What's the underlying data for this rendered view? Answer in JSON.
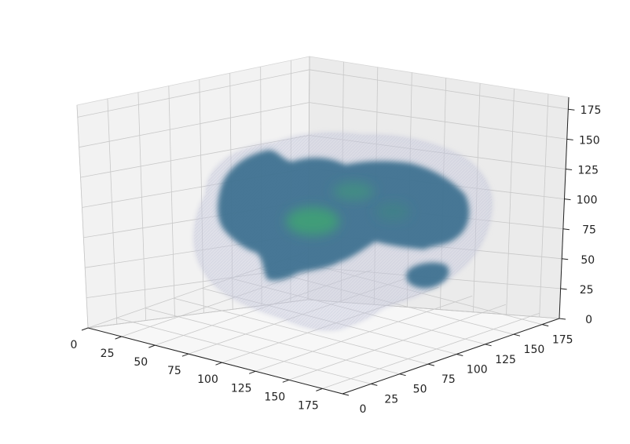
{
  "chart_data": {
    "type": "3d-volume",
    "title": "",
    "xlabel": "",
    "ylabel": "",
    "zlabel": "",
    "xlim": [
      0,
      190
    ],
    "ylim": [
      0,
      190
    ],
    "zlim": [
      0,
      185
    ],
    "x_ticks": [
      "0",
      "25",
      "50",
      "75",
      "100",
      "125",
      "150",
      "175"
    ],
    "y_ticks": [
      "0",
      "25",
      "50",
      "75",
      "100",
      "125",
      "150",
      "175"
    ],
    "z_ticks": [
      "0",
      "25",
      "50",
      "75",
      "100",
      "125",
      "150",
      "175"
    ],
    "x_tick_values": [
      0,
      25,
      50,
      75,
      100,
      125,
      150,
      175
    ],
    "y_tick_values": [
      0,
      25,
      50,
      75,
      100,
      125,
      150,
      175
    ],
    "z_tick_values": [
      0,
      25,
      50,
      75,
      100,
      125,
      150,
      175
    ],
    "grid": true,
    "layers": [
      {
        "role": "outer brain envelope",
        "color": "#c7c9dd",
        "opacity": 0.45
      },
      {
        "role": "inner activation volume",
        "color": "#3b6f8e",
        "opacity": 0.9
      },
      {
        "role": "high-value core",
        "color": "#3fa672",
        "opacity": 0.8
      }
    ],
    "pane_colors": {
      "left": "#f2f2f2",
      "right": "#ebebeb",
      "floor": "#f7f7f7",
      "grid": "#c8c8c8",
      "edge": "#222222"
    }
  }
}
